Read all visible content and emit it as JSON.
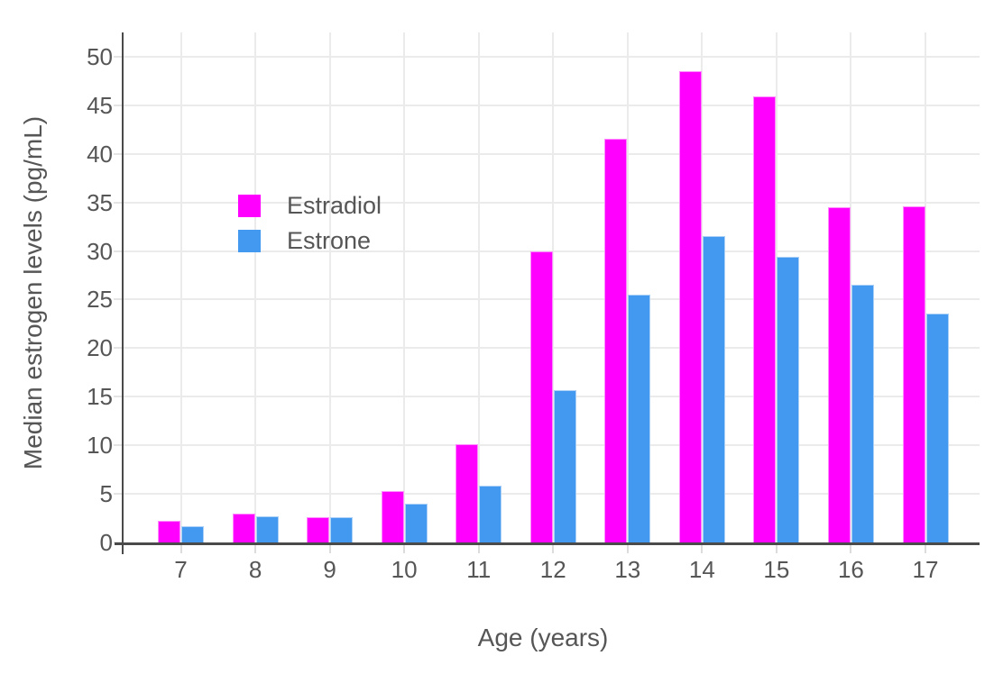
{
  "chart_data": {
    "type": "bar",
    "title": "",
    "xlabel": "Age (years)",
    "ylabel": "Median estrogen levels (pg/mL)",
    "categories": [
      "7",
      "8",
      "9",
      "10",
      "11",
      "12",
      "13",
      "14",
      "15",
      "16",
      "17"
    ],
    "series": [
      {
        "name": "Estradiol",
        "color": "#ff00ff",
        "values": [
          2.2,
          3.0,
          2.6,
          5.3,
          10.1,
          30.0,
          41.6,
          48.5,
          45.9,
          34.5,
          34.6
        ]
      },
      {
        "name": "Estrone",
        "color": "#4398f0",
        "values": [
          1.7,
          2.7,
          2.6,
          4.0,
          5.8,
          15.7,
          25.5,
          31.5,
          29.4,
          26.5,
          23.6
        ]
      }
    ],
    "yticks": [
      0,
      5,
      10,
      15,
      20,
      25,
      30,
      35,
      40,
      45,
      50
    ],
    "ylim": [
      0,
      52.5
    ],
    "grid": true,
    "legend_position": "inside-top-left",
    "bar_mode": "grouped"
  },
  "colors": {
    "background": "#ffffff",
    "axis_line": "#4a4a4a",
    "grid_line": "#ebebeb",
    "tick_mark": "#dcdcdc",
    "text": "#565656"
  }
}
